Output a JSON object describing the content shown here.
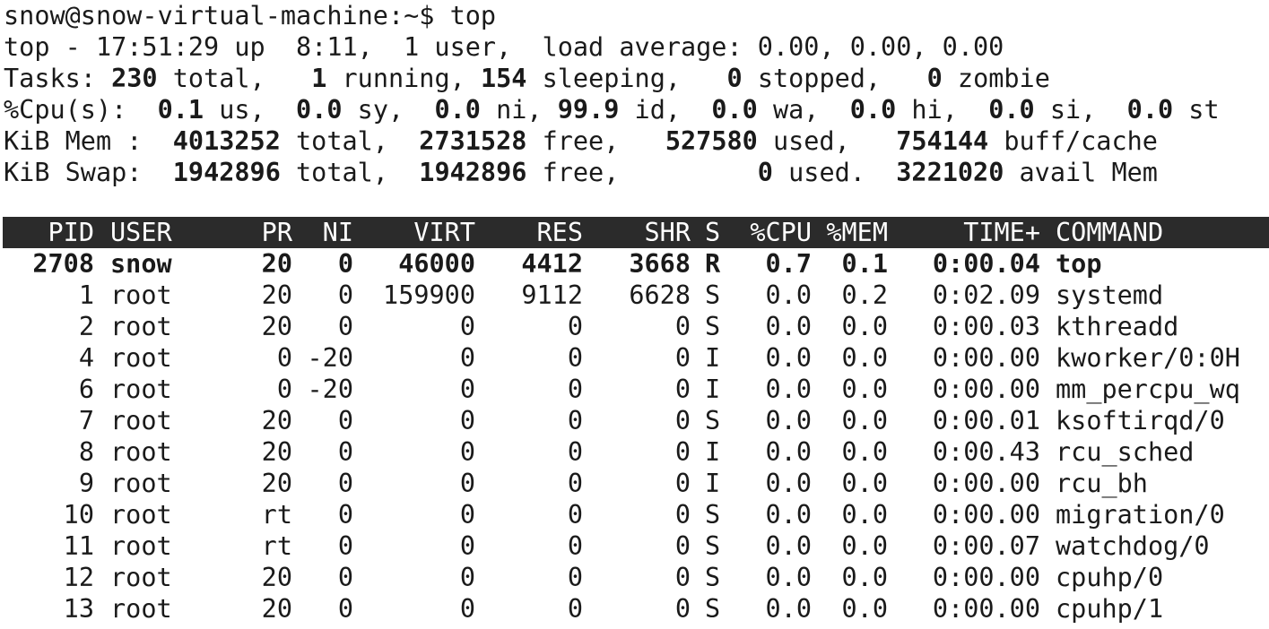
{
  "prompt": {
    "text": "snow@snow-virtual-machine:~$ top"
  },
  "summary": {
    "uptime_line": "top - 17:51:29 up  8:11,  1 user,  load average: 0.00, 0.00, 0.00",
    "tasks": {
      "label": "Tasks: ",
      "total": "230",
      "total_suffix": " total,   ",
      "running": "1",
      "running_suffix": " running, ",
      "sleeping": "154",
      "sleeping_suffix": " sleeping,   ",
      "stopped": "0",
      "stopped_suffix": " stopped,   ",
      "zombie": "0",
      "zombie_suffix": " zombie"
    },
    "cpu": {
      "label": "%Cpu(s):  ",
      "us": "0.1",
      "us_suffix": " us,  ",
      "sy": "0.0",
      "sy_suffix": " sy,  ",
      "ni": "0.0",
      "ni_suffix": " ni, ",
      "id": "99.9",
      "id_suffix": " id,  ",
      "wa": "0.0",
      "wa_suffix": " wa,  ",
      "hi": "0.0",
      "hi_suffix": " hi,  ",
      "si": "0.0",
      "si_suffix": " si,  ",
      "st": "0.0",
      "st_suffix": " st"
    },
    "mem": {
      "label": "KiB Mem :  ",
      "total": "4013252",
      "total_suffix": " total,  ",
      "free": "2731528",
      "free_suffix": " free,   ",
      "used": "527580",
      "used_suffix": " used,   ",
      "buff": "754144",
      "buff_suffix": " buff/cache"
    },
    "swap": {
      "label": "KiB Swap:  ",
      "total": "1942896",
      "total_suffix": " total,  ",
      "free": "1942896",
      "free_suffix": " free,         ",
      "used": "0",
      "used_suffix": " used.  ",
      "avail": "3221020",
      "avail_suffix": " avail Mem"
    }
  },
  "columns": [
    "PID",
    "USER",
    "PR",
    "NI",
    "VIRT",
    "RES",
    "SHR",
    "S",
    "%CPU",
    "%MEM",
    "TIME+",
    "COMMAND"
  ],
  "processes": [
    {
      "pid": "2708",
      "user": "snow",
      "pr": "20",
      "ni": "0",
      "virt": "46000",
      "res": "4412",
      "shr": "3668",
      "s": "R",
      "cpu": "0.7",
      "mem": "0.1",
      "time": "0:00.04",
      "cmd": "top"
    },
    {
      "pid": "1",
      "user": "root",
      "pr": "20",
      "ni": "0",
      "virt": "159900",
      "res": "9112",
      "shr": "6628",
      "s": "S",
      "cpu": "0.0",
      "mem": "0.2",
      "time": "0:02.09",
      "cmd": "systemd"
    },
    {
      "pid": "2",
      "user": "root",
      "pr": "20",
      "ni": "0",
      "virt": "0",
      "res": "0",
      "shr": "0",
      "s": "S",
      "cpu": "0.0",
      "mem": "0.0",
      "time": "0:00.03",
      "cmd": "kthreadd"
    },
    {
      "pid": "4",
      "user": "root",
      "pr": "0",
      "ni": "-20",
      "virt": "0",
      "res": "0",
      "shr": "0",
      "s": "I",
      "cpu": "0.0",
      "mem": "0.0",
      "time": "0:00.00",
      "cmd": "kworker/0:0H"
    },
    {
      "pid": "6",
      "user": "root",
      "pr": "0",
      "ni": "-20",
      "virt": "0",
      "res": "0",
      "shr": "0",
      "s": "I",
      "cpu": "0.0",
      "mem": "0.0",
      "time": "0:00.00",
      "cmd": "mm_percpu_wq"
    },
    {
      "pid": "7",
      "user": "root",
      "pr": "20",
      "ni": "0",
      "virt": "0",
      "res": "0",
      "shr": "0",
      "s": "S",
      "cpu": "0.0",
      "mem": "0.0",
      "time": "0:00.01",
      "cmd": "ksoftirqd/0"
    },
    {
      "pid": "8",
      "user": "root",
      "pr": "20",
      "ni": "0",
      "virt": "0",
      "res": "0",
      "shr": "0",
      "s": "I",
      "cpu": "0.0",
      "mem": "0.0",
      "time": "0:00.43",
      "cmd": "rcu_sched"
    },
    {
      "pid": "9",
      "user": "root",
      "pr": "20",
      "ni": "0",
      "virt": "0",
      "res": "0",
      "shr": "0",
      "s": "I",
      "cpu": "0.0",
      "mem": "0.0",
      "time": "0:00.00",
      "cmd": "rcu_bh"
    },
    {
      "pid": "10",
      "user": "root",
      "pr": "rt",
      "ni": "0",
      "virt": "0",
      "res": "0",
      "shr": "0",
      "s": "S",
      "cpu": "0.0",
      "mem": "0.0",
      "time": "0:00.00",
      "cmd": "migration/0"
    },
    {
      "pid": "11",
      "user": "root",
      "pr": "rt",
      "ni": "0",
      "virt": "0",
      "res": "0",
      "shr": "0",
      "s": "S",
      "cpu": "0.0",
      "mem": "0.0",
      "time": "0:00.07",
      "cmd": "watchdog/0"
    },
    {
      "pid": "12",
      "user": "root",
      "pr": "20",
      "ni": "0",
      "virt": "0",
      "res": "0",
      "shr": "0",
      "s": "S",
      "cpu": "0.0",
      "mem": "0.0",
      "time": "0:00.00",
      "cmd": "cpuhp/0"
    },
    {
      "pid": "13",
      "user": "root",
      "pr": "20",
      "ni": "0",
      "virt": "0",
      "res": "0",
      "shr": "0",
      "s": "S",
      "cpu": "0.0",
      "mem": "0.0",
      "time": "0:00.00",
      "cmd": "cpuhp/1"
    }
  ],
  "colors": {
    "background": "#ffffff",
    "foreground": "#1a1a1a",
    "header_bar": "#2b2b2b",
    "header_text": "#ffffff"
  }
}
